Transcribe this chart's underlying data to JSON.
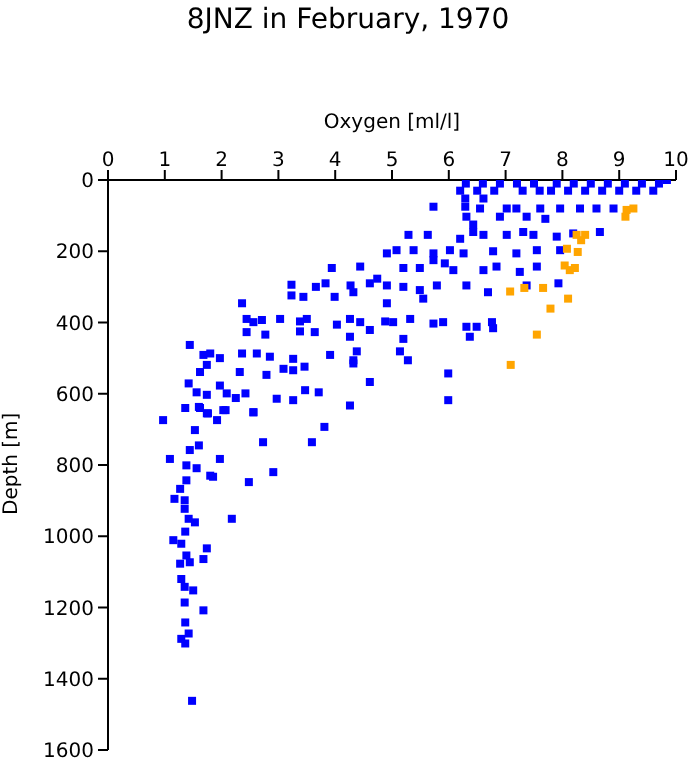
{
  "chart_data": {
    "type": "scatter",
    "title": "8JNZ in February, 1970",
    "xlabel": "Oxygen [ml/l]",
    "ylabel": "Depth [m]",
    "xlim": [
      0,
      10
    ],
    "xticks": [
      0,
      1,
      2,
      3,
      4,
      5,
      6,
      7,
      8,
      9,
      10
    ],
    "ylim": [
      1600,
      0
    ],
    "yticks": [
      0,
      200,
      400,
      600,
      800,
      1000,
      1200,
      1400,
      1600
    ],
    "grid": false,
    "legend": false,
    "marker": "square",
    "series": [
      {
        "color": "#0000ff",
        "x": [
          6.3,
          6.6,
          6.9,
          7.2,
          7.5,
          7.9,
          8.2,
          8.5,
          8.8,
          9.1,
          9.4,
          9.7,
          6.2,
          6.5,
          6.8,
          7.3,
          7.6,
          7.8,
          8.1,
          8.4,
          8.7,
          9.0,
          9.3,
          9.6,
          9.84,
          6.61,
          6.29,
          5.73,
          6.29,
          6.55,
          7.02,
          7.19,
          7.61,
          7.96,
          8.31,
          8.6,
          8.9,
          6.31,
          6.43,
          6.9,
          7.37,
          7.7,
          5.29,
          5.63,
          6.2,
          6.43,
          6.61,
          7.02,
          7.31,
          7.49,
          7.9,
          8.66,
          8.19,
          4.91,
          5.08,
          5.38,
          5.73,
          6.02,
          6.26,
          6.78,
          7.19,
          7.55,
          7.96,
          3.94,
          4.44,
          4.74,
          5.2,
          5.49,
          5.73,
          5.93,
          6.08,
          6.61,
          6.84,
          7.25,
          7.55,
          3.23,
          3.66,
          3.83,
          4.27,
          4.61,
          4.91,
          5.2,
          5.49,
          5.79,
          6.31,
          6.69,
          7.37,
          7.93,
          3.23,
          3.44,
          3.99,
          4.32,
          4.91,
          5.55,
          2.36,
          2.44,
          2.56,
          2.71,
          3.03,
          3.38,
          3.5,
          4.03,
          4.26,
          4.44,
          4.88,
          5.02,
          5.32,
          5.73,
          5.9,
          6.31,
          6.49,
          6.76,
          2.44,
          2.77,
          3.38,
          3.64,
          4.26,
          4.61,
          5.2,
          6.37,
          6.78,
          1.44,
          1.68,
          1.8,
          1.97,
          2.36,
          2.62,
          2.85,
          3.26,
          3.46,
          3.91,
          4.32,
          4.38,
          5.14,
          5.28,
          1.62,
          1.74,
          2.32,
          2.79,
          3.09,
          3.26,
          4.32,
          4.61,
          5.99,
          1.42,
          1.56,
          1.74,
          1.97,
          2.09,
          2.25,
          2.42,
          2.97,
          3.26,
          3.47,
          3.71,
          4.26,
          5.99,
          1.6,
          1.76,
          2.03,
          2.56,
          0.97,
          1.36,
          1.62,
          1.92,
          1.74,
          2.07,
          2.56,
          3.81,
          2.73,
          3.59,
          1.53,
          1.6,
          1.44,
          1.97,
          1.09,
          1.38,
          1.56,
          1.8,
          1.85,
          2.91,
          2.48,
          1.38,
          1.27,
          1.17,
          1.35,
          1.35,
          1.42,
          1.53,
          2.18,
          1.36,
          1.15,
          1.29,
          1.74,
          1.38,
          1.68,
          1.27,
          1.44,
          1.29,
          1.35,
          1.5,
          1.35,
          1.68,
          1.36,
          1.29,
          1.42,
          1.36,
          1.48
        ],
        "values": [
          10,
          10,
          10,
          10,
          10,
          10,
          10,
          10,
          10,
          10,
          10,
          10,
          30,
          30,
          30,
          30,
          30,
          30,
          30,
          30,
          30,
          30,
          30,
          30,
          0,
          52,
          52,
          75,
          75,
          80,
          80,
          80,
          80,
          80,
          80,
          80,
          80,
          103,
          125,
          103,
          103,
          109,
          154,
          154,
          165,
          146,
          154,
          154,
          146,
          154,
          159,
          146,
          150,
          206,
          197,
          197,
          206,
          197,
          206,
          200,
          206,
          197,
          197,
          247,
          243,
          277,
          247,
          247,
          225,
          234,
          253,
          253,
          243,
          258,
          243,
          294,
          300,
          290,
          296,
          290,
          296,
          300,
          309,
          296,
          296,
          315,
          296,
          290,
          324,
          328,
          328,
          315,
          346,
          333,
          346,
          390,
          399,
          393,
          390,
          397,
          390,
          406,
          390,
          399,
          397,
          399,
          390,
          403,
          399,
          412,
          412,
          399,
          427,
          434,
          425,
          427,
          440,
          421,
          446,
          440,
          416,
          463,
          491,
          487,
          500,
          487,
          487,
          496,
          502,
          524,
          491,
          506,
          481,
          481,
          506,
          539,
          519,
          539,
          547,
          530,
          534,
          515,
          567,
          543,
          571,
          596,
          603,
          577,
          599,
          612,
          599,
          614,
          618,
          590,
          596,
          633,
          618,
          637,
          655,
          646,
          652,
          674,
          640,
          640,
          674,
          655,
          646,
          652,
          693,
          736,
          736,
          702,
          745,
          758,
          783,
          783,
          801,
          809,
          830,
          833,
          820,
          848,
          843,
          867,
          895,
          899,
          923,
          951,
          961,
          951,
          987,
          1011,
          1021,
          1034,
          1054,
          1064,
          1077,
          1073,
          1120,
          1142,
          1152,
          1186,
          1208,
          1242,
          1288,
          1273,
          1301,
          1462
        ]
      },
      {
        "color": "#ffa500",
        "x": [
          9.13,
          9.25,
          9.11,
          8.25,
          8.4,
          8.33,
          8.08,
          8.27,
          8.04,
          8.13,
          8.22,
          7.08,
          7.33,
          7.66,
          8.1,
          7.79,
          7.55,
          7.09
        ],
        "values": [
          84,
          80,
          103,
          154,
          154,
          169,
          193,
          202,
          240,
          253,
          247,
          313,
          303,
          303,
          333,
          361,
          434,
          519
        ]
      }
    ]
  }
}
